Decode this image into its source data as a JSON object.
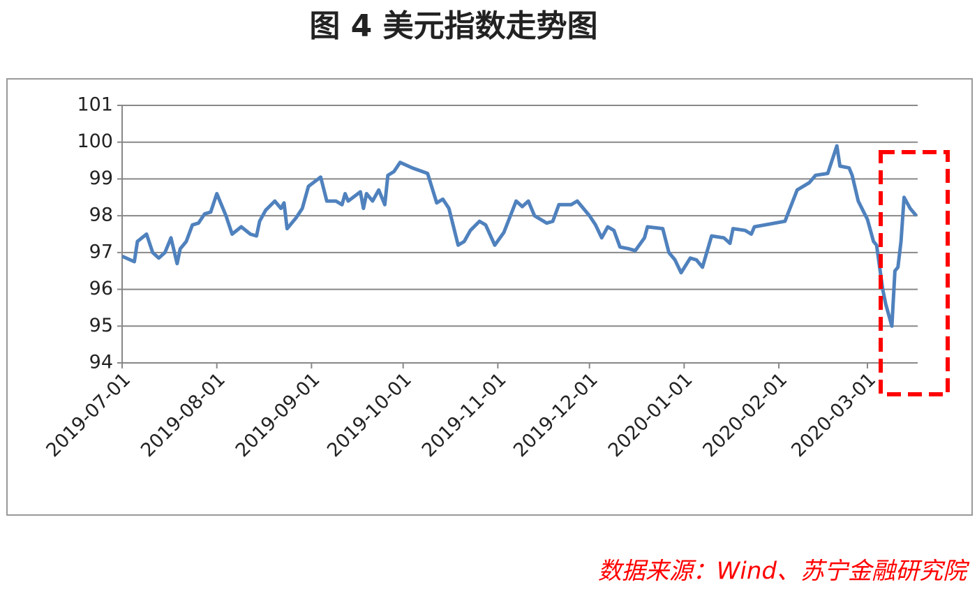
{
  "chart_data": {
    "type": "line",
    "title": "图 4 美元指数走势图",
    "source": "数据来源：Wind、苏宁金融研究院",
    "color": "#4f81bd",
    "grid": true,
    "ylim": [
      94,
      101
    ],
    "yticks": [
      94,
      95,
      96,
      97,
      98,
      99,
      100,
      101
    ],
    "xlim": [
      "2019-07-01",
      "2020-03-17"
    ],
    "xticks": [
      "2019-07-01",
      "2019-08-01",
      "2019-09-01",
      "2019-10-01",
      "2019-11-01",
      "2019-12-01",
      "2020-01-01",
      "2020-02-01",
      "2020-03-01"
    ],
    "x": [
      "2019-07-01",
      "2019-07-05",
      "2019-07-06",
      "2019-07-09",
      "2019-07-11",
      "2019-07-13",
      "2019-07-15",
      "2019-07-17",
      "2019-07-19",
      "2019-07-20",
      "2019-07-22",
      "2019-07-24",
      "2019-07-26",
      "2019-07-28",
      "2019-07-30",
      "2019-08-01",
      "2019-08-04",
      "2019-08-06",
      "2019-08-09",
      "2019-08-12",
      "2019-08-14",
      "2019-08-15",
      "2019-08-17",
      "2019-08-20",
      "2019-08-22",
      "2019-08-23",
      "2019-08-24",
      "2019-08-27",
      "2019-08-29",
      "2019-08-31",
      "2019-09-04",
      "2019-09-06",
      "2019-09-09",
      "2019-09-11",
      "2019-09-12",
      "2019-09-13",
      "2019-09-17",
      "2019-09-18",
      "2019-09-19",
      "2019-09-21",
      "2019-09-23",
      "2019-09-25",
      "2019-09-26",
      "2019-09-28",
      "2019-09-30",
      "2019-10-04",
      "2019-10-09",
      "2019-10-12",
      "2019-10-14",
      "2019-10-16",
      "2019-10-19",
      "2019-10-21",
      "2019-10-23",
      "2019-10-26",
      "2019-10-28",
      "2019-10-31",
      "2019-11-03",
      "2019-11-07",
      "2019-11-09",
      "2019-11-11",
      "2019-11-13",
      "2019-11-17",
      "2019-11-19",
      "2019-11-21",
      "2019-11-25",
      "2019-11-27",
      "2019-12-01",
      "2019-12-03",
      "2019-12-05",
      "2019-12-07",
      "2019-12-09",
      "2019-12-11",
      "2019-12-14",
      "2019-12-16",
      "2019-12-19",
      "2019-12-20",
      "2019-12-25",
      "2019-12-27",
      "2019-12-29",
      "2019-12-31",
      "2020-01-03",
      "2020-01-05",
      "2020-01-07",
      "2020-01-10",
      "2020-01-14",
      "2020-01-16",
      "2020-01-17",
      "2020-01-21",
      "2020-01-23",
      "2020-01-24",
      "2020-02-03",
      "2020-02-07",
      "2020-02-11",
      "2020-02-13",
      "2020-02-17",
      "2020-02-20",
      "2020-02-21",
      "2020-02-24",
      "2020-02-25",
      "2020-02-27",
      "2020-03-01",
      "2020-03-03",
      "2020-03-04",
      "2020-03-06",
      "2020-03-07",
      "2020-03-09",
      "2020-03-10",
      "2020-03-11",
      "2020-03-12",
      "2020-03-13",
      "2020-03-15",
      "2020-03-17"
    ],
    "values": [
      96.9,
      96.75,
      97.3,
      97.5,
      97.0,
      96.85,
      97.0,
      97.4,
      96.7,
      97.1,
      97.3,
      97.75,
      97.8,
      98.05,
      98.1,
      98.6,
      98.0,
      97.5,
      97.7,
      97.5,
      97.45,
      97.85,
      98.15,
      98.4,
      98.2,
      98.35,
      97.65,
      97.95,
      98.2,
      98.8,
      99.05,
      98.4,
      98.4,
      98.3,
      98.6,
      98.4,
      98.65,
      98.2,
      98.6,
      98.4,
      98.7,
      98.3,
      99.1,
      99.2,
      99.45,
      99.3,
      99.15,
      98.35,
      98.45,
      98.2,
      97.2,
      97.3,
      97.6,
      97.85,
      97.75,
      97.2,
      97.55,
      98.4,
      98.25,
      98.4,
      98.0,
      97.8,
      97.85,
      98.3,
      98.3,
      98.4,
      98.0,
      97.75,
      97.4,
      97.7,
      97.6,
      97.15,
      97.1,
      97.05,
      97.4,
      97.7,
      97.65,
      97.0,
      96.8,
      96.45,
      96.85,
      96.8,
      96.6,
      97.45,
      97.4,
      97.25,
      97.65,
      97.6,
      97.5,
      97.7,
      97.85,
      98.7,
      98.9,
      99.1,
      99.15,
      99.9,
      99.35,
      99.3,
      99.1,
      98.4,
      97.9,
      97.3,
      97.2,
      96.0,
      95.6,
      95.0,
      96.5,
      96.6,
      97.3,
      98.5,
      98.2,
      98.0
    ]
  }
}
